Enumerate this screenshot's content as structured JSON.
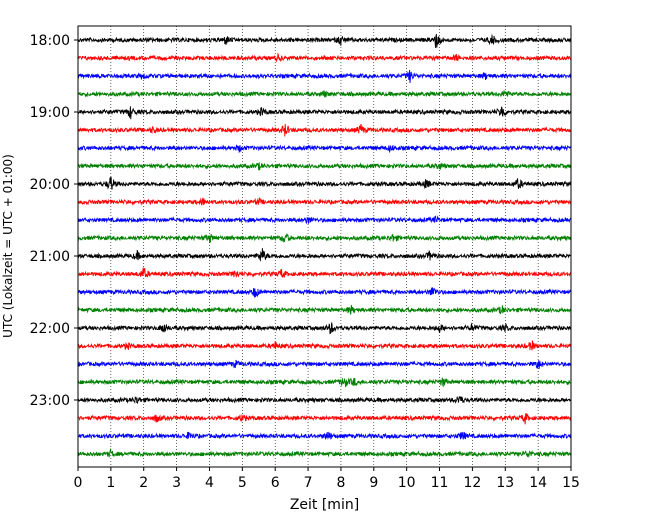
{
  "chart_data": {
    "type": "line",
    "title": "",
    "xlabel": "Zeit  [min]",
    "ylabel": "UTC (Lokalzeit = UTC + 01:00)",
    "xlim": [
      0,
      15
    ],
    "x_ticks": [
      "0",
      "1",
      "2",
      "3",
      "4",
      "5",
      "6",
      "7",
      "8",
      "9",
      "10",
      "11",
      "12",
      "13",
      "14",
      "15"
    ],
    "y_tick_labels": [
      "18:00",
      "19:00",
      "20:00",
      "21:00",
      "22:00",
      "23:00"
    ],
    "grid": "vertical dotted",
    "trace_interval_minutes": 15,
    "color_cycle": [
      "#000000",
      "#ff0000",
      "#0000ff",
      "#008000"
    ],
    "series": [
      {
        "start": "18:00",
        "color": "#000000",
        "events": [
          [
            4.5,
            0.8
          ],
          [
            8.0,
            0.9
          ],
          [
            10.9,
            1.6
          ],
          [
            12.6,
            0.9
          ]
        ]
      },
      {
        "start": "18:15",
        "color": "#ff0000",
        "events": [
          [
            6.1,
            0.5
          ],
          [
            11.5,
            0.5
          ]
        ]
      },
      {
        "start": "18:30",
        "color": "#0000ff",
        "events": [
          [
            2.0,
            0.5
          ],
          [
            10.1,
            1.0
          ],
          [
            12.4,
            0.5
          ]
        ]
      },
      {
        "start": "18:45",
        "color": "#008000",
        "events": [
          [
            7.5,
            0.5
          ],
          [
            13.0,
            0.7
          ]
        ]
      },
      {
        "start": "19:00",
        "color": "#000000",
        "events": [
          [
            1.6,
            1.1
          ],
          [
            5.6,
            0.7
          ],
          [
            12.9,
            1.3
          ]
        ]
      },
      {
        "start": "19:15",
        "color": "#ff0000",
        "events": [
          [
            2.3,
            0.6
          ],
          [
            6.3,
            1.1
          ],
          [
            8.6,
            0.9
          ]
        ]
      },
      {
        "start": "19:30",
        "color": "#0000ff",
        "events": [
          [
            4.9,
            0.5
          ],
          [
            9.5,
            0.5
          ]
        ]
      },
      {
        "start": "19:45",
        "color": "#008000",
        "events": [
          [
            5.5,
            0.5
          ],
          [
            11.0,
            0.5
          ]
        ]
      },
      {
        "start": "20:00",
        "color": "#000000",
        "events": [
          [
            1.0,
            1.5
          ],
          [
            10.6,
            0.7
          ],
          [
            13.4,
            1.0
          ]
        ]
      },
      {
        "start": "20:15",
        "color": "#ff0000",
        "events": [
          [
            3.8,
            0.6
          ],
          [
            5.5,
            0.5
          ]
        ]
      },
      {
        "start": "20:30",
        "color": "#0000ff",
        "events": [
          [
            7.0,
            0.6
          ],
          [
            10.9,
            0.5
          ]
        ]
      },
      {
        "start": "20:45",
        "color": "#008000",
        "events": [
          [
            4.0,
            0.8
          ],
          [
            6.3,
            1.0
          ],
          [
            9.6,
            0.7
          ]
        ]
      },
      {
        "start": "21:00",
        "color": "#000000",
        "events": [
          [
            1.8,
            0.7
          ],
          [
            5.6,
            1.4
          ],
          [
            10.7,
            0.7
          ]
        ]
      },
      {
        "start": "21:15",
        "color": "#ff0000",
        "events": [
          [
            2.0,
            1.1
          ],
          [
            4.8,
            0.6
          ],
          [
            6.2,
            0.8
          ]
        ]
      },
      {
        "start": "21:30",
        "color": "#0000ff",
        "events": [
          [
            5.4,
            1.1
          ],
          [
            10.8,
            1.0
          ]
        ]
      },
      {
        "start": "21:45",
        "color": "#008000",
        "events": [
          [
            8.3,
            0.7
          ],
          [
            12.9,
            0.7
          ]
        ]
      },
      {
        "start": "22:00",
        "color": "#000000",
        "events": [
          [
            2.6,
            1.0
          ],
          [
            7.7,
            1.1
          ],
          [
            11.0,
            0.7
          ],
          [
            12.0,
            0.6
          ],
          [
            13.0,
            0.5
          ]
        ]
      },
      {
        "start": "22:15",
        "color": "#ff0000",
        "events": [
          [
            1.5,
            0.5
          ],
          [
            6.0,
            0.6
          ],
          [
            13.8,
            0.9
          ]
        ]
      },
      {
        "start": "22:30",
        "color": "#0000ff",
        "events": [
          [
            4.8,
            0.5
          ],
          [
            14.0,
            0.9
          ]
        ]
      },
      {
        "start": "22:45",
        "color": "#008000",
        "events": [
          [
            8.1,
            1.0
          ],
          [
            8.4,
            0.7
          ],
          [
            11.1,
            0.7
          ]
        ]
      },
      {
        "start": "23:00",
        "color": "#000000",
        "events": [
          [
            1.8,
            0.6
          ],
          [
            11.6,
            0.9
          ]
        ]
      },
      {
        "start": "23:15",
        "color": "#ff0000",
        "events": [
          [
            2.4,
            0.7
          ],
          [
            5.0,
            0.6
          ],
          [
            13.6,
            0.9
          ]
        ]
      },
      {
        "start": "23:30",
        "color": "#0000ff",
        "events": [
          [
            3.4,
            0.7
          ],
          [
            7.6,
            0.9
          ],
          [
            11.7,
            0.8
          ]
        ]
      },
      {
        "start": "23:45",
        "color": "#008000",
        "events": [
          [
            1.0,
            0.6
          ],
          [
            13.7,
            0.6
          ]
        ]
      }
    ]
  }
}
